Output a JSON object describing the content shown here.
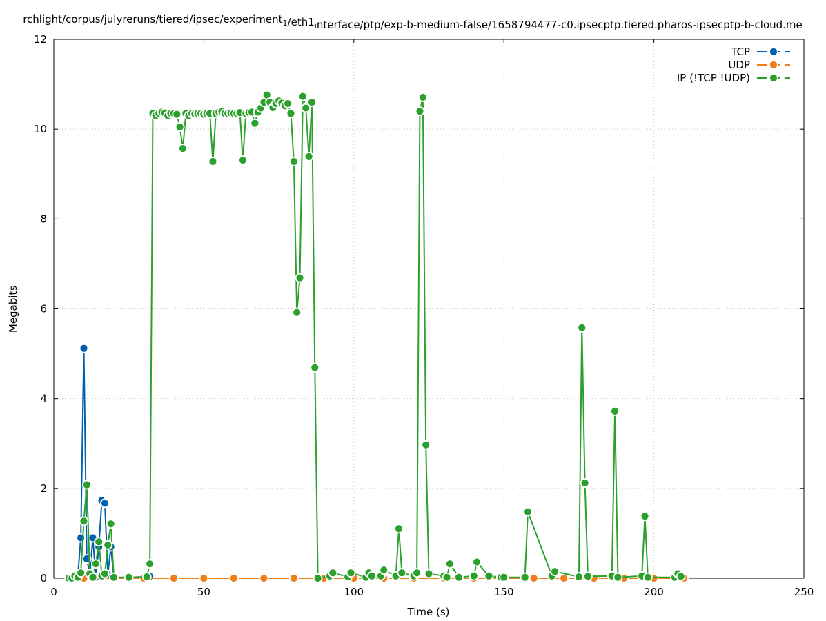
{
  "chart_data": {
    "type": "line",
    "title": "rchlight/corpus/julyreruns/tiered/ipsec/experiment_1/eth1_interface/ptp/exp-b-medium-false/1658794477-c0.ipsecptp.tiered.pharos-ipsecptp-b-cloud.me",
    "xlabel": "Time (s)",
    "ylabel": "Megabits",
    "xlim": [
      0,
      250
    ],
    "ylim": [
      0,
      12
    ],
    "x_ticks": [
      "0",
      "50",
      "100",
      "150",
      "200",
      "250"
    ],
    "y_ticks": [
      "0",
      "2",
      "4",
      "6",
      "8",
      "10",
      "12"
    ],
    "grid": true,
    "legend_position": "top-right",
    "series": [
      {
        "name": "TCP",
        "color": "#0060ad",
        "x": [
          5,
          6,
          7,
          8,
          9,
          10,
          11,
          12,
          13,
          14,
          15,
          16,
          17,
          18,
          19,
          20,
          25,
          31,
          32
        ],
        "y": [
          0,
          0,
          0.05,
          0.05,
          0.9,
          5.12,
          0.43,
          0.07,
          0.9,
          0.02,
          0.7,
          1.73,
          1.67,
          0.08,
          0.7,
          0.01,
          0.02,
          0.03,
          0.04
        ]
      },
      {
        "name": "UDP",
        "color": "#f07f1a",
        "x": [
          5,
          10,
          20,
          30,
          40,
          50,
          60,
          70,
          80,
          90,
          100,
          110,
          120,
          130,
          140,
          150,
          160,
          170,
          180,
          190,
          200,
          210
        ],
        "y": [
          0,
          0,
          0,
          0,
          0,
          0,
          0,
          0,
          0,
          0,
          0,
          0,
          0,
          0,
          0,
          0,
          0,
          0,
          0,
          0,
          0,
          0
        ]
      },
      {
        "name": "IP (!TCP  !UDP)",
        "color": "#2ca02c",
        "x": [
          5,
          6,
          7,
          8,
          9,
          10,
          11,
          12,
          13,
          14,
          15,
          16,
          17,
          18,
          19,
          20,
          25,
          31,
          32,
          33,
          34,
          35,
          36,
          37,
          38,
          39,
          40,
          41,
          42,
          43,
          44,
          45,
          46,
          47,
          48,
          49,
          50,
          51,
          52,
          53,
          54,
          55,
          56,
          57,
          58,
          59,
          60,
          61,
          62,
          63,
          64,
          65,
          66,
          67,
          68,
          69,
          70,
          71,
          72,
          73,
          74,
          75,
          76,
          77,
          78,
          79,
          80,
          81,
          82,
          83,
          84,
          85,
          86,
          87,
          88,
          92,
          93,
          98,
          99,
          104,
          105,
          106,
          109,
          110,
          114,
          115,
          116,
          120,
          121,
          122,
          123,
          124,
          125,
          130,
          131,
          132,
          135,
          140,
          141,
          145,
          149,
          150,
          157,
          158,
          166,
          167,
          175,
          176,
          177,
          178,
          186,
          187,
          188,
          196,
          197,
          198,
          207,
          208,
          209
        ],
        "y": [
          0,
          0,
          0.05,
          0.02,
          0.12,
          1.27,
          2.08,
          0.1,
          0.02,
          0.32,
          0.81,
          0.05,
          0.1,
          0.74,
          1.21,
          0.02,
          0.02,
          0.03,
          0.32,
          10.35,
          10.3,
          10.35,
          10.38,
          10.36,
          10.3,
          10.35,
          10.35,
          10.33,
          10.05,
          9.57,
          10.35,
          10.3,
          10.35,
          10.34,
          10.35,
          10.35,
          10.33,
          10.35,
          10.35,
          9.28,
          10.35,
          10.38,
          10.39,
          10.35,
          10.35,
          10.36,
          10.35,
          10.35,
          10.37,
          9.31,
          10.35,
          10.37,
          10.38,
          10.13,
          10.38,
          10.47,
          10.6,
          10.76,
          10.6,
          10.48,
          10.57,
          10.63,
          10.58,
          10.52,
          10.57,
          10.35,
          9.28,
          5.92,
          6.69,
          10.73,
          10.47,
          9.39,
          10.6,
          4.69,
          0,
          0.05,
          0.12,
          0.03,
          0.12,
          0.02,
          0.12,
          0.05,
          0.05,
          0.18,
          0.05,
          1.1,
          0.12,
          0.05,
          0.12,
          10.4,
          10.71,
          2.97,
          0.1,
          0.05,
          0.02,
          0.32,
          0.02,
          0.05,
          0.36,
          0.05,
          0.02,
          0.02,
          0.02,
          1.48,
          0.05,
          0.15,
          0.03,
          5.58,
          2.12,
          0.04,
          0.05,
          3.72,
          0.02,
          0.05,
          1.38,
          0.02,
          0.02,
          0.1,
          0.04
        ]
      }
    ]
  }
}
